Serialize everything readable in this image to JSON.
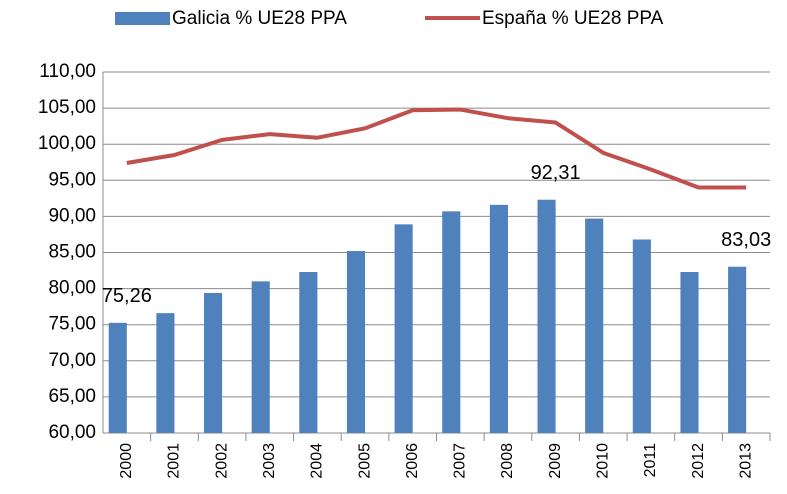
{
  "chart_data": {
    "type": "bar",
    "categories": [
      "2000",
      "2001",
      "2002",
      "2003",
      "2004",
      "2005",
      "2006",
      "2007",
      "2008",
      "2009",
      "2010",
      "2011",
      "2012",
      "2013"
    ],
    "series": [
      {
        "name": "Galicia % UE28 PPA",
        "type": "bar",
        "color": "#4f81bd",
        "values": [
          75.26,
          76.6,
          79.4,
          81.0,
          82.3,
          85.2,
          88.9,
          90.7,
          91.6,
          92.31,
          89.7,
          86.8,
          82.3,
          83.03
        ],
        "value_labels": [
          "75,26",
          null,
          null,
          null,
          null,
          null,
          null,
          null,
          null,
          "92,31",
          null,
          null,
          null,
          "83,03"
        ]
      },
      {
        "name": "España % UE28 PPA",
        "type": "line",
        "color": "#c0504d",
        "values": [
          97.4,
          98.5,
          100.6,
          101.4,
          100.9,
          102.2,
          104.7,
          104.8,
          103.6,
          103.0,
          98.8,
          96.5,
          94.0,
          94.0
        ]
      }
    ],
    "ylim": [
      60,
      110
    ],
    "yticks": [
      {
        "value": 60,
        "label": "60,00"
      },
      {
        "value": 65,
        "label": "65,00"
      },
      {
        "value": 70,
        "label": "70,00"
      },
      {
        "value": 75,
        "label": "75,00"
      },
      {
        "value": 80,
        "label": "80,00"
      },
      {
        "value": 85,
        "label": "85,00"
      },
      {
        "value": 90,
        "label": "90,00"
      },
      {
        "value": 95,
        "label": "95,00"
      },
      {
        "value": 100,
        "label": "100,00"
      },
      {
        "value": 105,
        "label": "105,00"
      },
      {
        "value": 110,
        "label": "110,00"
      }
    ],
    "grid": true,
    "legend": "top"
  }
}
